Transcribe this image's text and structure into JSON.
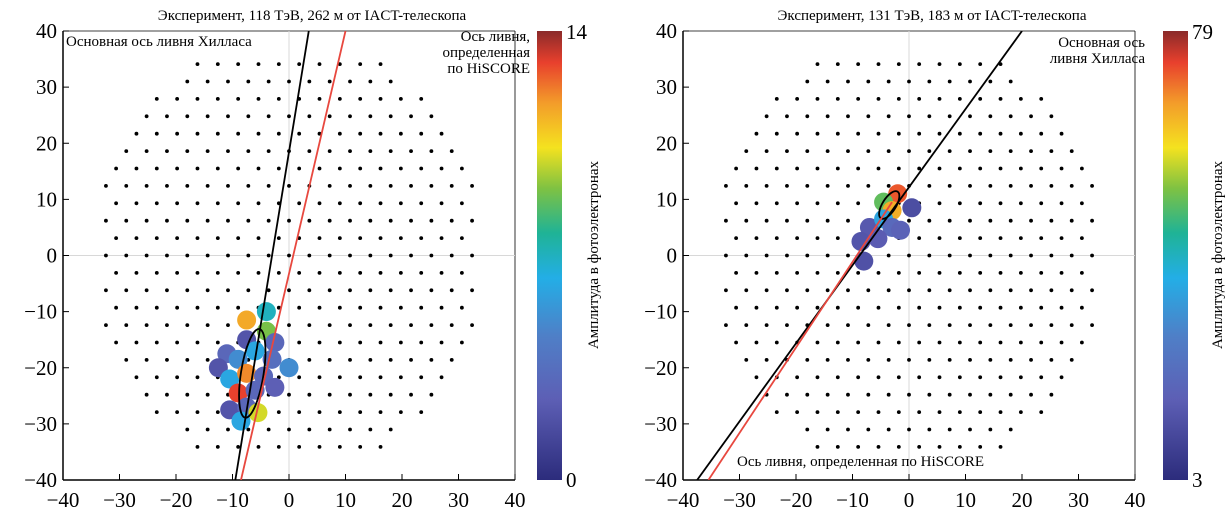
{
  "chart_data": [
    {
      "type": "scatter",
      "title": "Эксперимент, 118 ТэВ, 262 м от IACT-телескопа",
      "xlim": [
        -40,
        40
      ],
      "ylim": [
        -40,
        40
      ],
      "xticks": [
        -40,
        -30,
        -20,
        -10,
        0,
        10,
        20,
        30,
        40
      ],
      "yticks": [
        -40,
        -30,
        -20,
        -10,
        0,
        10,
        20,
        30,
        40
      ],
      "colorbar": {
        "label": "Амплитуда в фотоэлектронах",
        "min_label": "0",
        "max_label": "14"
      },
      "annotations": [
        {
          "lines": [
            "Основная ось ливня Хилласа"
          ],
          "color": "#000000"
        },
        {
          "lines": [
            "Ось ливня,",
            "определенная",
            "по HiSCORE"
          ],
          "color": "#000000"
        }
      ],
      "axis_lines": [
        {
          "name": "hillas-axis",
          "color": "#000000",
          "points": [
            [
              -9.5,
              -40
            ],
            [
              3.5,
              40
            ]
          ]
        },
        {
          "name": "hiscore-axis",
          "color": "#e8483f",
          "points": [
            [
              -8.5,
              -40
            ],
            [
              10.0,
              40
            ]
          ]
        }
      ],
      "hillas_ellipse": {
        "cx": -6.5,
        "cy": -21,
        "rx": 2.0,
        "ry": 8.0,
        "angle_deg": 9
      },
      "pixels": [
        {
          "x": -7.5,
          "y": -11.5,
          "v": 11.5
        },
        {
          "x": -4,
          "y": -10,
          "v": 7
        },
        {
          "x": -11,
          "y": -17.5,
          "v": 3
        },
        {
          "x": -7.5,
          "y": -15,
          "v": 2
        },
        {
          "x": -4,
          "y": -13.5,
          "v": 9
        },
        {
          "x": -2.5,
          "y": -15.5,
          "v": 3
        },
        {
          "x": -12.5,
          "y": -20,
          "v": 2
        },
        {
          "x": -9,
          "y": -18.5,
          "v": 5
        },
        {
          "x": -6,
          "y": -17,
          "v": 6
        },
        {
          "x": -3,
          "y": -18.5,
          "v": 3.5
        },
        {
          "x": -10.5,
          "y": -22,
          "v": 6
        },
        {
          "x": -7.5,
          "y": -21,
          "v": 12
        },
        {
          "x": -4.5,
          "y": -21.5,
          "v": 3
        },
        {
          "x": 0,
          "y": -20,
          "v": 5
        },
        {
          "x": -2.5,
          "y": -23.5,
          "v": 2.5
        },
        {
          "x": -9,
          "y": -24.5,
          "v": 13
        },
        {
          "x": -6,
          "y": -24,
          "v": 3
        },
        {
          "x": -10.5,
          "y": -27.5,
          "v": 2
        },
        {
          "x": -7.5,
          "y": -27,
          "v": 3
        },
        {
          "x": -5.5,
          "y": -28,
          "v": 10
        },
        {
          "x": -8.5,
          "y": -29.5,
          "v": 6
        }
      ]
    },
    {
      "type": "scatter",
      "title": "Эксперимент, 131 ТэВ, 183 м от IACT-телескопа",
      "xlim": [
        -40,
        40
      ],
      "ylim": [
        -40,
        40
      ],
      "xticks": [
        -40,
        -30,
        -20,
        -10,
        0,
        10,
        20,
        30,
        40
      ],
      "yticks": [
        -40,
        -30,
        -20,
        -10,
        0,
        10,
        20,
        30,
        40
      ],
      "colorbar": {
        "label": "Амплитуда в фотоэлектронах",
        "min_label": "3",
        "max_label": "79"
      },
      "annotations": [
        {
          "lines": [
            "Основная ось",
            "ливня Хилласа"
          ],
          "color": "#000000"
        },
        {
          "lines": [
            "Ось ливня, определенная по HiSCORE"
          ],
          "color": "#000000"
        }
      ],
      "axis_lines": [
        {
          "name": "hillas-axis",
          "color": "#000000",
          "points": [
            [
              -37.5,
              -40
            ],
            [
              20,
              40
            ]
          ]
        },
        {
          "name": "hiscore-axis",
          "color": "#e8483f",
          "points": [
            [
              -35.5,
              -40
            ],
            [
              -3,
              9.5
            ]
          ]
        }
      ],
      "hillas_ellipse": {
        "cx": -3.5,
        "cy": 9,
        "rx": 1.2,
        "ry": 2.8,
        "angle_deg": 32
      },
      "pixels": [
        {
          "x": -2,
          "y": 11,
          "v": 72
        },
        {
          "x": -4.5,
          "y": 9.5,
          "v": 50
        },
        {
          "x": -3,
          "y": 8,
          "v": 65
        },
        {
          "x": 0.5,
          "y": 8.5,
          "v": 12
        },
        {
          "x": -7,
          "y": 5,
          "v": 15
        },
        {
          "x": -4.5,
          "y": 6.5,
          "v": 35
        },
        {
          "x": -3,
          "y": 5,
          "v": 20
        },
        {
          "x": -8.5,
          "y": 2.5,
          "v": 14
        },
        {
          "x": -5.5,
          "y": 3,
          "v": 16
        },
        {
          "x": -1.5,
          "y": 4.5,
          "v": 18
        },
        {
          "x": -8,
          "y": -1,
          "v": 13
        }
      ]
    }
  ]
}
